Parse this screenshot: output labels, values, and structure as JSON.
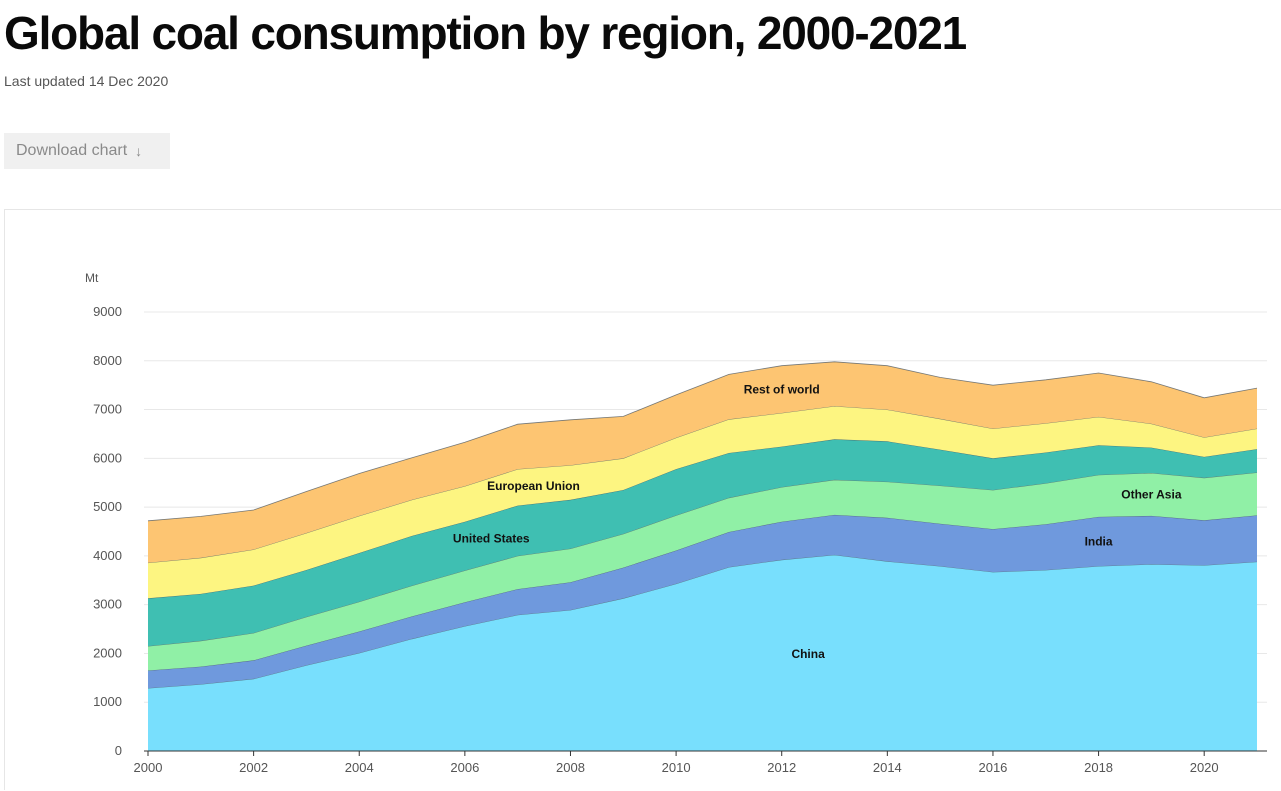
{
  "header": {
    "title": "Global coal consumption by region, 2000-2021",
    "updated": "Last updated 14 Dec 2020",
    "download_label": "Download chart",
    "download_icon": "↓"
  },
  "chart_data": {
    "type": "area",
    "stacked": true,
    "title": "Global coal consumption by region, 2000-2021",
    "ylabel": "Mt",
    "xlabel": "",
    "ylim": [
      0,
      9000
    ],
    "yticks": [
      0,
      1000,
      2000,
      3000,
      4000,
      5000,
      6000,
      7000,
      8000,
      9000
    ],
    "xticks": [
      2000,
      2002,
      2004,
      2006,
      2008,
      2010,
      2012,
      2014,
      2016,
      2018,
      2020
    ],
    "x": [
      2000,
      2001,
      2002,
      2003,
      2004,
      2005,
      2006,
      2007,
      2008,
      2009,
      2010,
      2011,
      2012,
      2013,
      2014,
      2015,
      2016,
      2017,
      2018,
      2019,
      2020,
      2021
    ],
    "series": [
      {
        "name": "China",
        "color": "#78dffd",
        "values": [
          1290,
          1370,
          1480,
          1760,
          2010,
          2300,
          2560,
          2790,
          2890,
          3130,
          3430,
          3770,
          3920,
          4020,
          3890,
          3790,
          3670,
          3710,
          3790,
          3830,
          3810,
          3880
        ]
      },
      {
        "name": "India",
        "color": "#6f99dd",
        "values": [
          360,
          360,
          380,
          400,
          440,
          460,
          490,
          530,
          570,
          630,
          680,
          720,
          780,
          820,
          890,
          870,
          880,
          940,
          1010,
          990,
          920,
          950
        ]
      },
      {
        "name": "Other Asia",
        "color": "#90f0a6",
        "values": [
          500,
          530,
          560,
          590,
          610,
          630,
          650,
          680,
          690,
          690,
          720,
          700,
          710,
          720,
          740,
          780,
          800,
          840,
          860,
          880,
          870,
          880
        ]
      },
      {
        "name": "United States",
        "color": "#3fbfb2",
        "values": [
          980,
          960,
          970,
          960,
          1000,
          1020,
          1000,
          1030,
          1000,
          900,
          950,
          920,
          830,
          830,
          830,
          740,
          650,
          630,
          610,
          520,
          430,
          480
        ]
      },
      {
        "name": "European Union",
        "color": "#fdf581",
        "values": [
          730,
          740,
          740,
          760,
          760,
          740,
          730,
          750,
          710,
          650,
          640,
          690,
          690,
          680,
          650,
          630,
          610,
          600,
          580,
          490,
          400,
          420
        ]
      },
      {
        "name": "Rest of world",
        "color": "#fdc572",
        "values": [
          860,
          850,
          810,
          850,
          870,
          860,
          900,
          920,
          930,
          860,
          880,
          920,
          970,
          910,
          900,
          850,
          890,
          890,
          900,
          860,
          810,
          830
        ]
      }
    ],
    "labels": [
      {
        "series": "China",
        "text": "China"
      },
      {
        "series": "India",
        "text": "India"
      },
      {
        "series": "Other Asia",
        "text": "Other Asia"
      },
      {
        "series": "United States",
        "text": "United States"
      },
      {
        "series": "European Union",
        "text": "European Union"
      },
      {
        "series": "Rest of world",
        "text": "Rest of world"
      }
    ]
  }
}
